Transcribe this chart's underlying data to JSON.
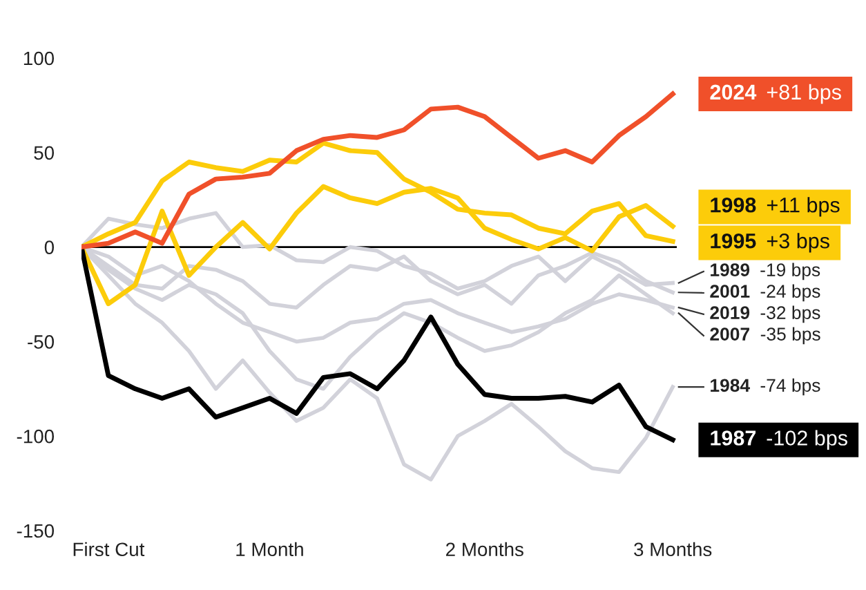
{
  "chart_data": {
    "type": "line",
    "categories": [
      null,
      "First Cut",
      null,
      null,
      null,
      null,
      null,
      "1 Month",
      null,
      null,
      null,
      null,
      null,
      null,
      null,
      "2 Months",
      null,
      null,
      null,
      null,
      null,
      null,
      "3 Months"
    ],
    "ylim": [
      -150,
      100
    ],
    "yticks": [
      -150,
      -100,
      -50,
      0,
      50,
      100
    ],
    "grid": false,
    "legend": false,
    "marker": "none",
    "line_style": "solid",
    "ref_lines": [
      {
        "axis": "y",
        "value": 0,
        "color": "#000000"
      }
    ],
    "annotations": [
      "-19 bps",
      "-24 bps",
      "-32 bps",
      "-35 bps",
      "-74 bps",
      "+11 bps",
      "+3 bps",
      "-102 bps",
      "+81 bps"
    ],
    "series": [
      {
        "name": "1989",
        "color": "#d2d2da",
        "values": [
          0,
          15,
          12,
          10,
          15,
          18,
          0,
          1,
          -7,
          -8,
          0,
          -2,
          -10,
          -14,
          -22,
          -18,
          -10,
          -5,
          -18,
          -5,
          -12,
          -20,
          -19
        ]
      },
      {
        "name": "2001",
        "color": "#d2d2da",
        "values": [
          0,
          -10,
          -20,
          -22,
          -10,
          -12,
          -18,
          -30,
          -32,
          -20,
          -10,
          -12,
          -5,
          -18,
          -25,
          -20,
          -30,
          -15,
          -10,
          -3,
          -8,
          -18,
          -24
        ]
      },
      {
        "name": "2019",
        "color": "#d2d2da",
        "values": [
          0,
          -5,
          -15,
          -10,
          -18,
          -30,
          -40,
          -45,
          -50,
          -48,
          -40,
          -38,
          -30,
          -28,
          -35,
          -40,
          -45,
          -42,
          -38,
          -30,
          -25,
          -28,
          -32
        ]
      },
      {
        "name": "2007",
        "color": "#d2d2da",
        "values": [
          0,
          -12,
          -22,
          -28,
          -20,
          -25,
          -35,
          -55,
          -70,
          -75,
          -58,
          -45,
          -35,
          -40,
          -48,
          -55,
          -52,
          -45,
          -35,
          -28,
          -15,
          -25,
          -35
        ]
      },
      {
        "name": "1984",
        "color": "#d2d2da",
        "values": [
          0,
          -15,
          -30,
          -40,
          -55,
          -75,
          -60,
          -77,
          -92,
          -85,
          -70,
          -80,
          -115,
          -123,
          -100,
          -92,
          -83,
          -95,
          -108,
          -117,
          -119,
          -101,
          -74
        ]
      },
      {
        "name": "1998",
        "color": "#fccc0a",
        "values": [
          0,
          -30,
          -20,
          19,
          -15,
          0,
          13,
          -1,
          18,
          32,
          26,
          23,
          29,
          31,
          26,
          10,
          4,
          -1,
          5,
          -2,
          16,
          22,
          11
        ]
      },
      {
        "name": "1995",
        "color": "#fccc0a",
        "values": [
          0,
          7,
          13,
          35,
          45,
          42,
          40,
          46,
          45,
          55,
          51,
          50,
          36,
          29,
          20,
          18,
          17,
          10,
          7,
          19,
          23,
          6,
          3
        ]
      },
      {
        "name": "1987",
        "color": "#000000",
        "values": [
          0,
          -68,
          -75,
          -80,
          -75,
          -90,
          -85,
          -80,
          -88,
          -69,
          -67,
          -75,
          -60,
          -37,
          -62,
          -78,
          -80,
          -80,
          -79,
          -82,
          -73,
          -95,
          -102
        ]
      },
      {
        "name": "2024",
        "color": "#f0502a",
        "values": [
          0,
          2,
          8,
          2,
          28,
          36,
          37,
          39,
          51,
          57,
          59,
          58,
          62,
          73,
          74,
          69,
          58,
          47,
          51,
          45,
          59,
          69,
          81
        ]
      }
    ]
  }
}
